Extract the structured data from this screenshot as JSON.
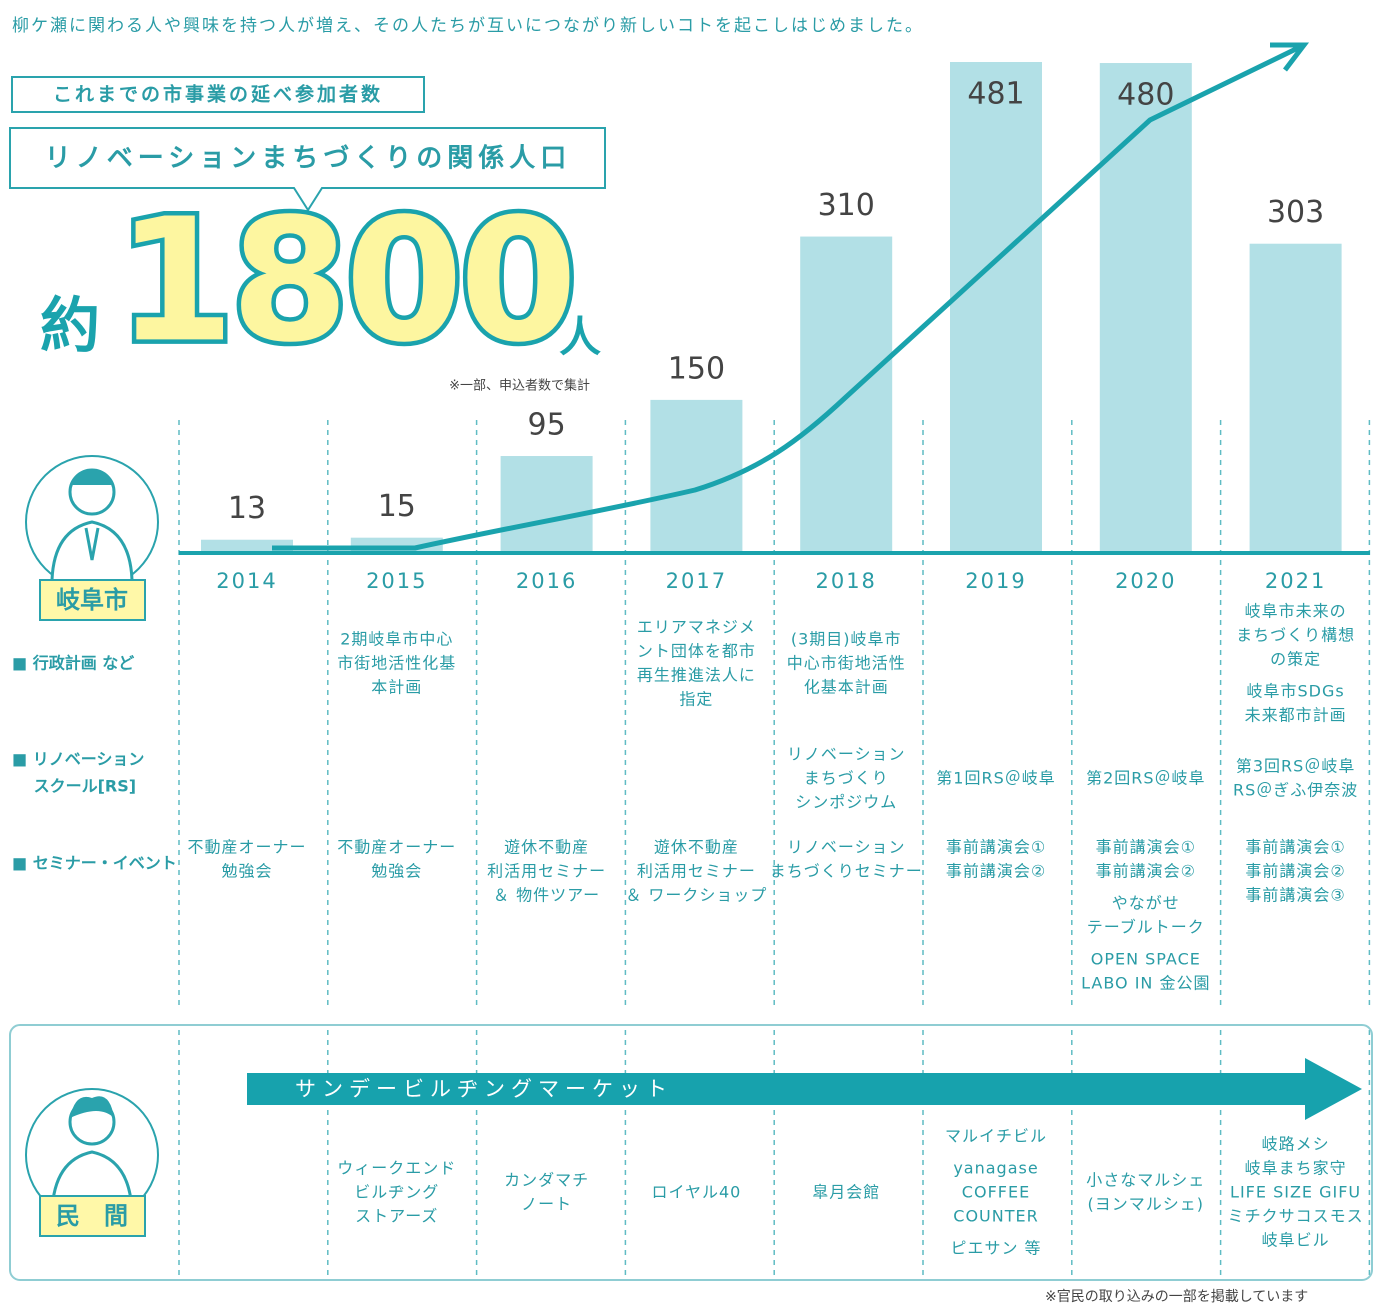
{
  "header": {
    "lead": "柳ケ瀬に関わる人や興味を持つ人が増え、その人たちが互いにつながり新しいコトを起こしはじめました。",
    "box1": "これまでの市事業の延べ参加者数",
    "box2": "リノベーションまちづくりの関係人口",
    "big_prefix": "約",
    "big_number": "1800",
    "big_suffix": "人",
    "note": "※一部、申込者数で集計"
  },
  "chart_data": {
    "type": "bar",
    "categories": [
      "2014",
      "2015",
      "2016",
      "2017",
      "2018",
      "2019",
      "2020",
      "2021"
    ],
    "values": [
      13,
      15,
      95,
      150,
      310,
      481,
      480,
      303
    ],
    "color": "#b2e0e6"
  },
  "labels": {
    "city": "岐阜市",
    "private": "民　間"
  },
  "rows": [
    {
      "label": [
        "■ 行政計画 など"
      ],
      "cells": [
        null,
        [
          [
            "2期岐阜市中心",
            "市街地活性化基",
            "本計画"
          ]
        ],
        null,
        [
          [
            "エリアマネジメ",
            "ント団体を都市",
            "再生推進法人に",
            "指定"
          ]
        ],
        [
          [
            "(3期目)岐阜市",
            "中心市街地活性",
            "化基本計画"
          ]
        ],
        null,
        null,
        [
          [
            "岐阜市未来の",
            "まちづくり構想",
            "の策定"
          ],
          [
            "岐阜市SDGs",
            "未来都市計画"
          ]
        ]
      ]
    },
    {
      "label": [
        "■ リノベーション",
        "　 スクール[RS]"
      ],
      "cells": [
        null,
        null,
        null,
        null,
        [
          [
            "リノベーション",
            "まちづくり",
            "シンポジウム"
          ]
        ],
        [
          [
            "第1回RS＠岐阜"
          ]
        ],
        [
          [
            "第2回RS＠岐阜"
          ]
        ],
        [
          [
            "第3回RS＠岐阜",
            "RS＠ぎふ伊奈波"
          ]
        ]
      ]
    },
    {
      "label": [
        "■ セミナー・イベント"
      ],
      "cells": [
        [
          [
            "不動産オーナー",
            "勉強会"
          ]
        ],
        [
          [
            "不動産オーナー",
            "勉強会"
          ]
        ],
        [
          [
            "遊休不動産",
            "利活用セミナー",
            "＆ 物件ツアー"
          ]
        ],
        [
          [
            "遊休不動産",
            "利活用セミナー",
            "＆ ワークショップ"
          ]
        ],
        [
          [
            "リノベーション",
            "まちづくりセミナー"
          ]
        ],
        [
          [
            "事前講演会①",
            "事前講演会②"
          ]
        ],
        [
          [
            "事前講演会①",
            "事前講演会②"
          ],
          [
            "やながせ",
            "テーブルトーク"
          ],
          [
            "OPEN SPACE",
            "LABO IN 金公園"
          ]
        ],
        [
          [
            "事前講演会①",
            "事前講演会②",
            "事前講演会③"
          ]
        ]
      ]
    }
  ],
  "private": {
    "arrow": "サンデービルヂングマーケット",
    "cells": [
      null,
      [
        [
          "ウィークエンド",
          "ビルヂング",
          "ストアーズ"
        ]
      ],
      [
        [
          "カンダマチ",
          "ノート"
        ]
      ],
      [
        [
          "ロイヤル40"
        ]
      ],
      [
        [
          "皐月会館"
        ]
      ],
      [
        [
          "マルイチビル"
        ],
        [
          "yanagase",
          "COFFEE",
          "COUNTER"
        ],
        [
          "ピエサン 等"
        ]
      ],
      [
        [
          "小さなマルシェ",
          "(ヨンマルシェ)"
        ]
      ],
      [
        [
          "岐路メシ",
          "岐阜まち家守",
          "LIFE SIZE GIFU",
          "ミチクサコスモス",
          "岐阜ビル"
        ]
      ]
    ]
  },
  "footnote": "※官民の取り込みの一部を掲載しています"
}
